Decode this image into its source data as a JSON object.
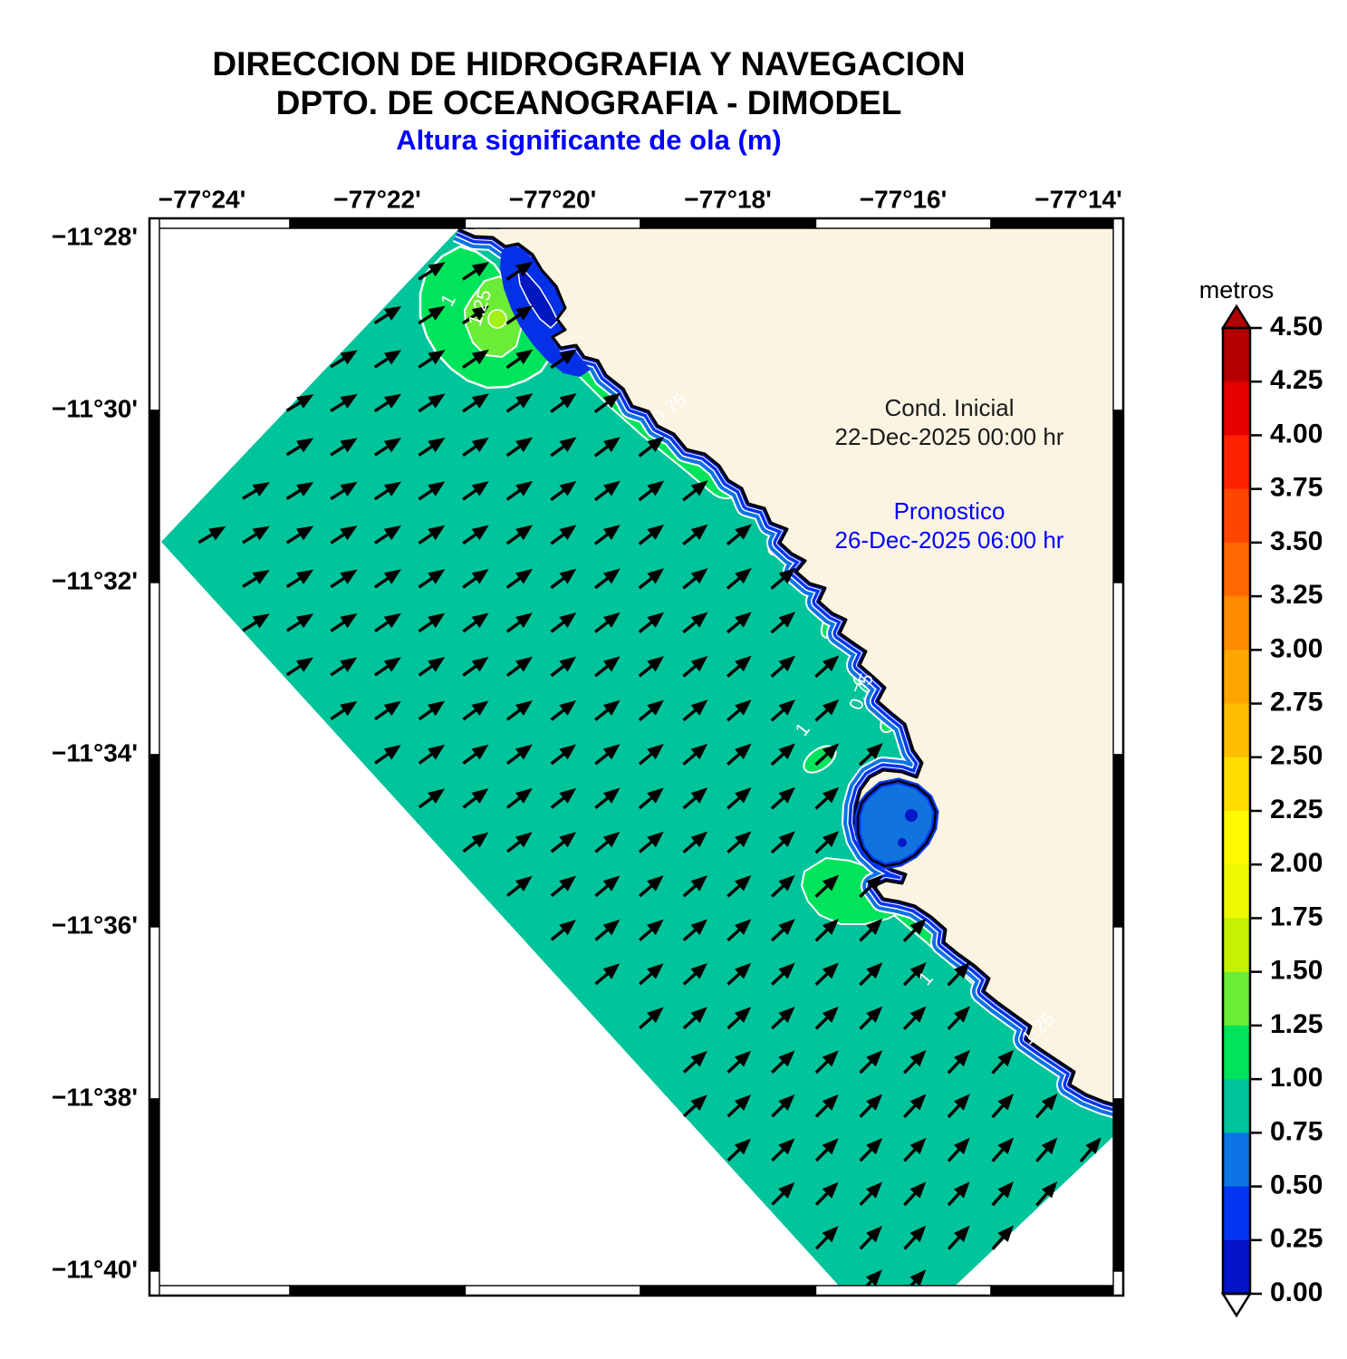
{
  "header": {
    "line1": "DIRECCION DE HIDROGRAFIA Y NAVEGACION",
    "line2": "DPTO. DE OCEANOGRAFIA - DIMODEL",
    "subtitle": "Altura significante de ola (m)",
    "subtitle_color": "#0000FF"
  },
  "annotations": {
    "initial_label": "Cond. Inicial",
    "initial_datetime": "22-Dec-2025 00:00 hr",
    "forecast_label": "Pronostico",
    "forecast_datetime": "26-Dec-2025 06:00 hr",
    "initial_color": "#1a1a1a",
    "forecast_color": "#0000FF"
  },
  "axes": {
    "lon_labels": [
      "−77°24'",
      "−77°22'",
      "−77°20'",
      "−77°18'",
      "−77°16'",
      "−77°14'"
    ],
    "lat_labels": [
      "−11°28'",
      "−11°30'",
      "−11°32'",
      "−11°34'",
      "−11°36'",
      "−11°38'",
      "−11°40'"
    ]
  },
  "colorbar": {
    "title": "metros",
    "tick_labels": [
      "4.50",
      "4.25",
      "4.00",
      "3.75",
      "3.50",
      "3.25",
      "3.00",
      "2.75",
      "2.50",
      "2.25",
      "2.00",
      "1.75",
      "1.50",
      "1.25",
      "1.00",
      "0.75",
      "0.50",
      "0.25",
      "0.00"
    ],
    "band_colors_top_to_bottom": [
      "#B40000",
      "#E60000",
      "#FF2200",
      "#FF4600",
      "#FF6900",
      "#FF8C00",
      "#FFA500",
      "#FFBF00",
      "#FFDE00",
      "#FFFA00",
      "#EEF800",
      "#C4F200",
      "#6BEC36",
      "#00E45C",
      "#00C49A",
      "#0C74E4",
      "#0336F0",
      "#0514C8"
    ],
    "over_color": "#B40000",
    "under_color": "#FFFFFF"
  },
  "map": {
    "sea_color": "#00C49A",
    "land_color": "#FBF4E2",
    "shore_band_colors": [
      "#0C74E4",
      "#0336F0",
      "#0514C8"
    ],
    "enhanced_band_color": "#00E45C",
    "high_band_color": "#6BEC36",
    "bay_color": "#1173DE",
    "contour_labels": [
      "1",
      "1.25",
      "0.75",
      "1",
      "0.75",
      "1",
      "1.25"
    ]
  },
  "chart_data": {
    "type": "heatmap",
    "title": "Altura significante de ola (m)",
    "institution": [
      "DIRECCION DE HIDROGRAFIA Y NAVEGACION",
      "DPTO. DE OCEANOGRAFIA - DIMODEL"
    ],
    "field": "significant wave height",
    "units": "metros",
    "initial_condition": "22-Dec-2025 00:00 hr",
    "forecast_valid": "26-Dec-2025 06:00 hr",
    "x_ticks": [
      "−77°24'",
      "−77°22'",
      "−77°20'",
      "−77°18'",
      "−77°16'",
      "−77°14'"
    ],
    "y_ticks": [
      "−11°28'",
      "−11°30'",
      "−11°32'",
      "−11°34'",
      "−11°36'",
      "−11°38'",
      "−11°40'"
    ],
    "color_scale": {
      "min": 0.0,
      "max": 4.5,
      "step": 0.25,
      "over": "dark red triangle",
      "under": "white triangle"
    },
    "values_summary": {
      "offshore_open_sea_m": "0.75–1.00",
      "coastal_enhancement_bands_m": "1.00–1.50",
      "shoreline_fringe_m": "0.00–0.75",
      "sheltered_bay_m": "0.25–0.75",
      "labeled_contours_m": [
        0.75,
        1,
        1.25
      ]
    },
    "vector_field": {
      "quantity": "wave direction",
      "direction": "arrows point toward the northeast (onshore)",
      "grid": "regular ~48 px grid over model domain"
    },
    "domain": "rotated rectangular wave-model domain oriented NW–SE along the Peruvian coast",
    "legend_position": "right vertical colorbar",
    "grid_lines": "off"
  }
}
